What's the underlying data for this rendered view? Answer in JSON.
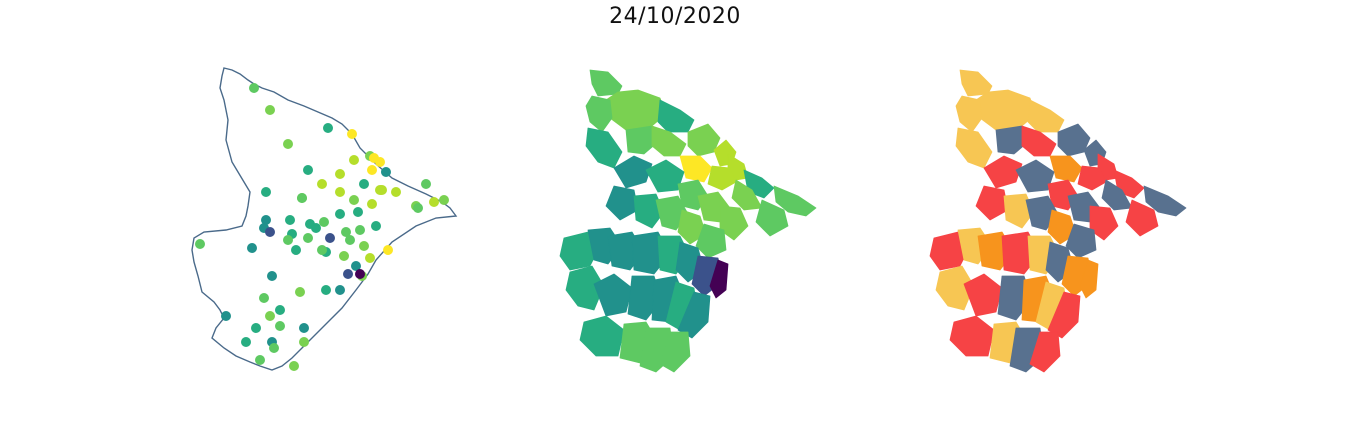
{
  "figure": {
    "title": "24/10/2020"
  },
  "colors": {
    "outline": "#4a6a8a",
    "viridis": [
      "#440154",
      "#3b528b",
      "#21918c",
      "#27ad81",
      "#5ec962",
      "#7ad151",
      "#b5de2b",
      "#fde725"
    ],
    "classes": {
      "low": "#f7c653",
      "medium": "#f7941d",
      "high": "#f64345",
      "very_high": "#58718f"
    }
  },
  "panels": [
    {
      "kind": "station-points",
      "icon": "map-outline-with-points"
    },
    {
      "kind": "continuous-choropleth",
      "icon": "viridis-choropleth"
    },
    {
      "kind": "categorical-choropleth",
      "icon": "four-class-choropleth"
    }
  ]
}
